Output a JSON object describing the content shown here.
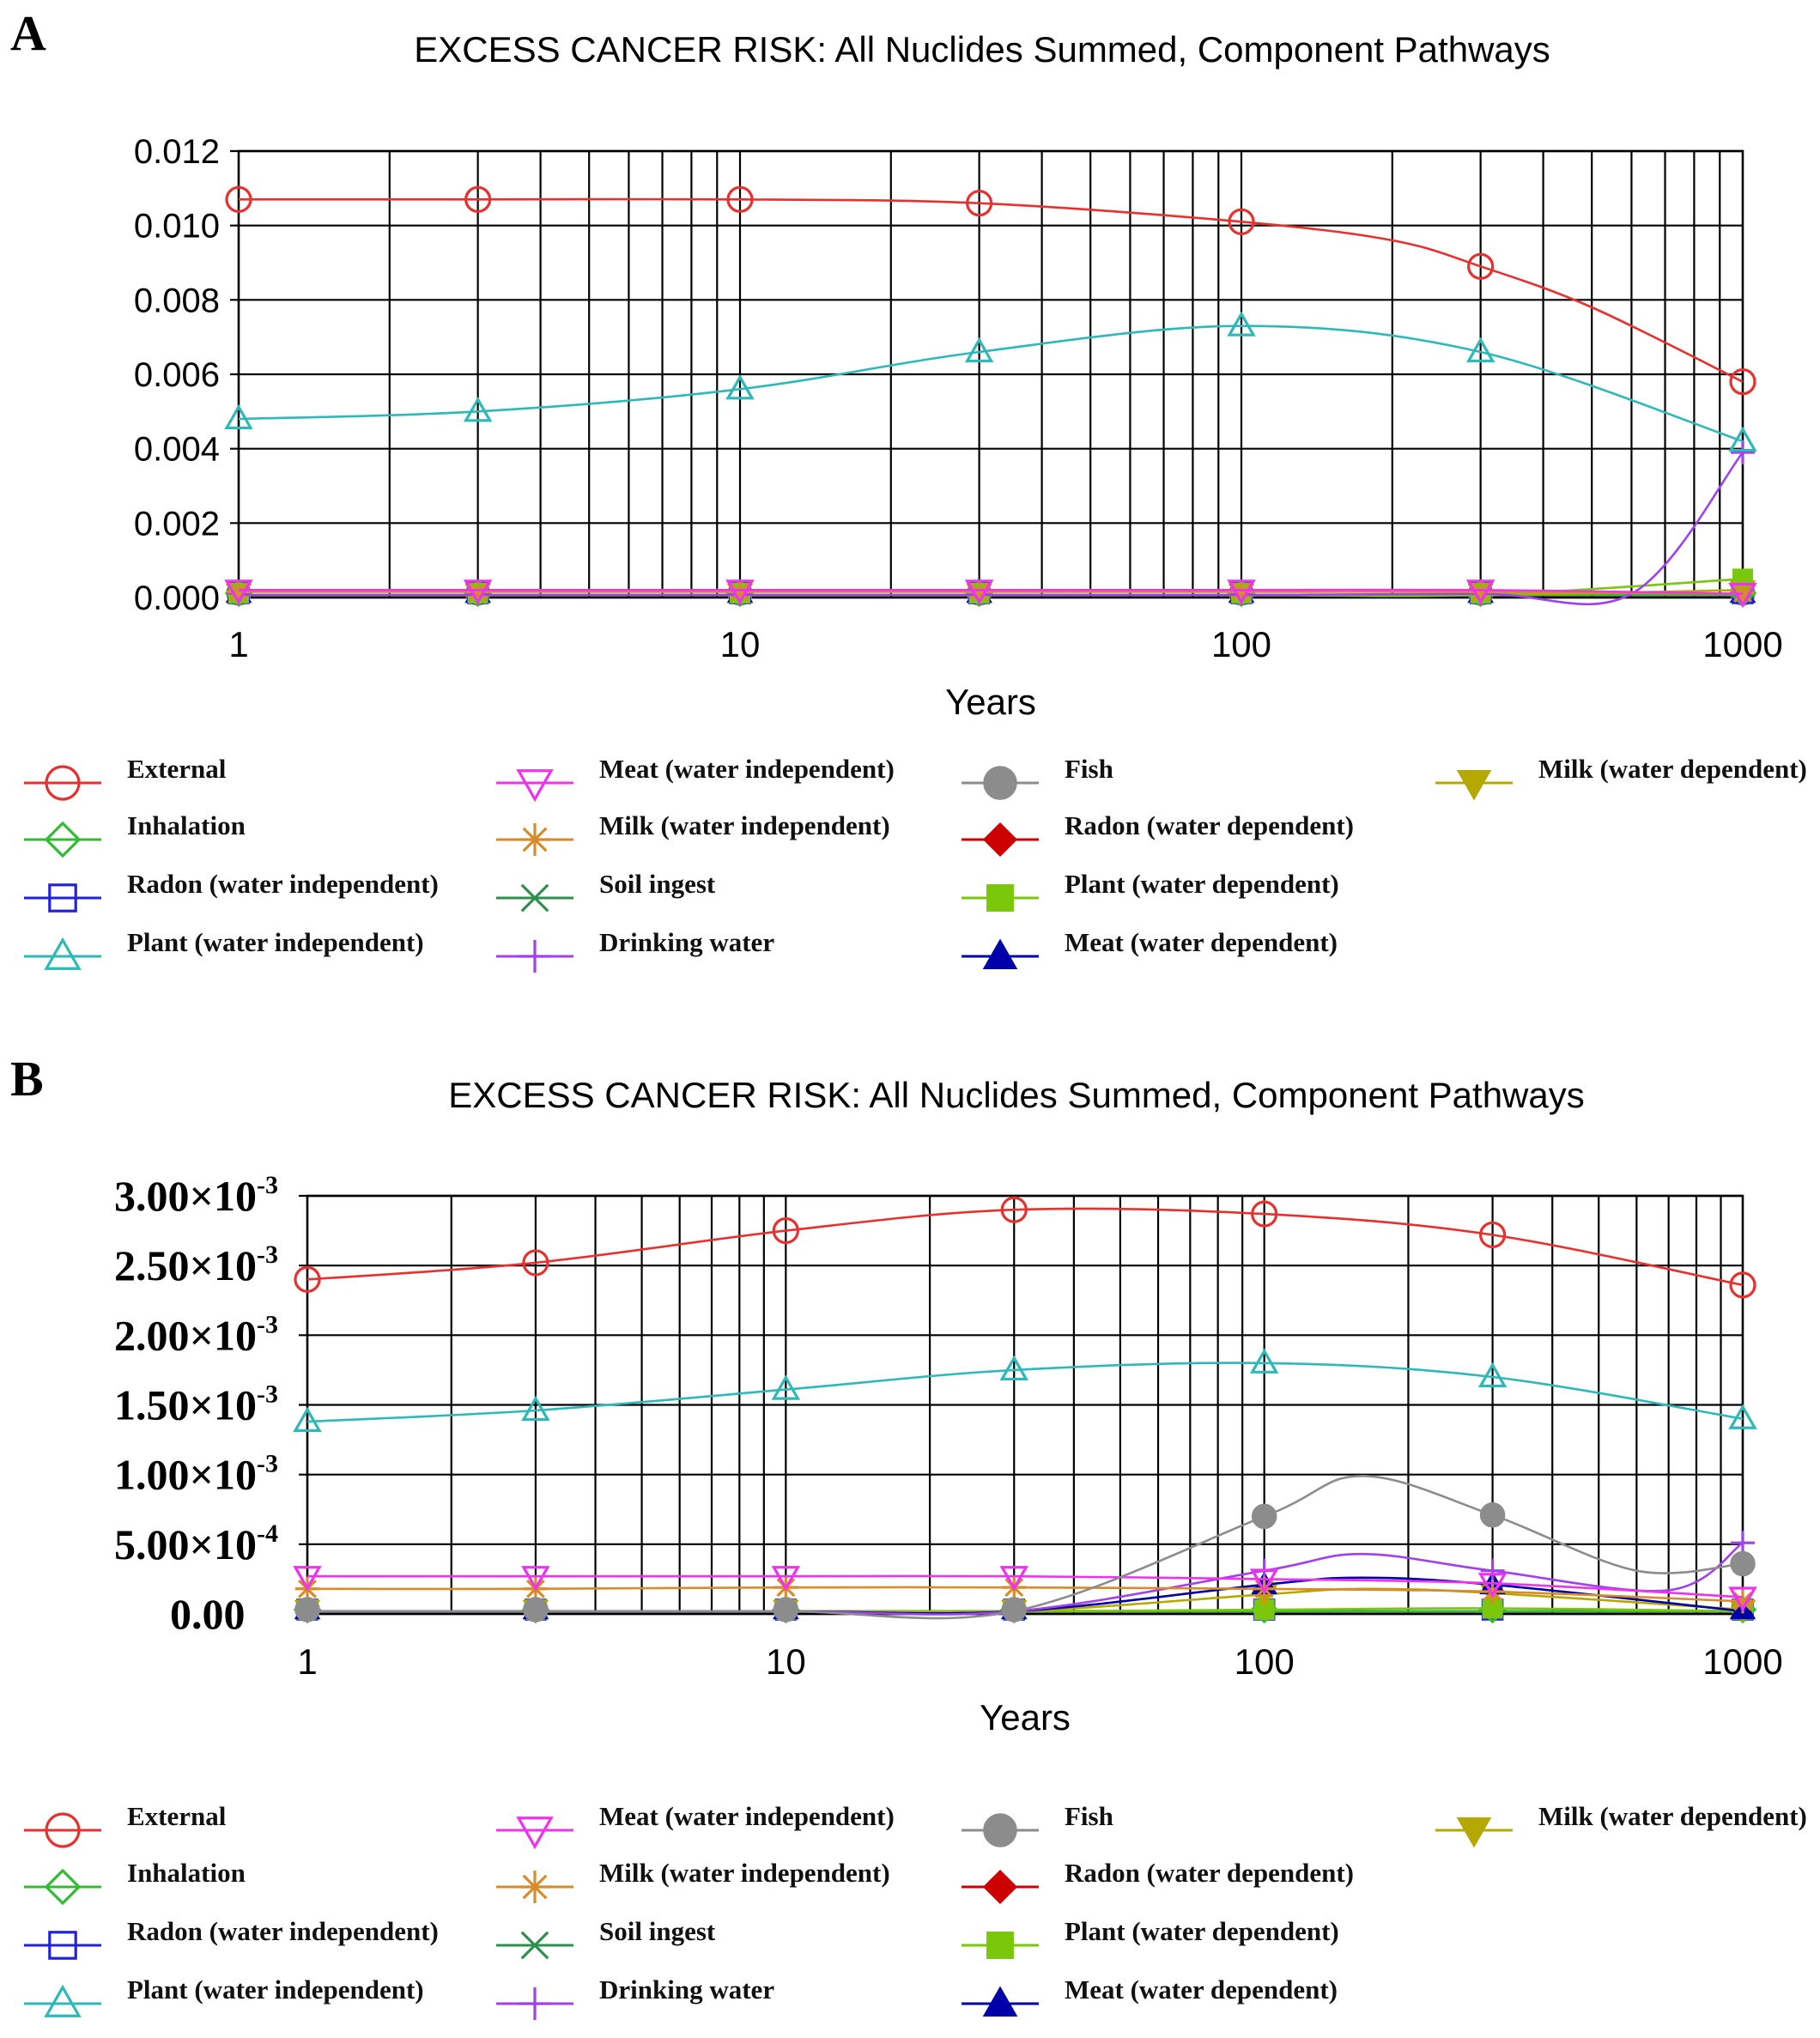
{
  "chart_data": [
    {
      "panel": "A",
      "type": "line",
      "title": "EXCESS CANCER RISK: All Nuclides Summed, Component Pathways",
      "xlabel": "Years",
      "ylabel": "",
      "xscale": "log",
      "xlim": [
        1,
        1000
      ],
      "ylim": [
        0,
        0.012
      ],
      "x_ticks": [
        1,
        10,
        100,
        1000
      ],
      "x_tick_labels": [
        "1",
        "10",
        "100",
        "1000"
      ],
      "y_ticks": [
        0,
        0.002,
        0.004,
        0.006,
        0.008,
        0.01,
        0.012
      ],
      "y_tick_labels": [
        "0.000",
        "0.002",
        "0.004",
        "0.006",
        "0.008",
        "0.010",
        "0.012"
      ],
      "grid": true,
      "marker_x": [
        1,
        3,
        10,
        30,
        100,
        300,
        1000
      ],
      "series": [
        {
          "name": "External",
          "color": "#e8302e",
          "marker": "circle-open",
          "x": [
            1,
            3,
            10,
            30,
            100,
            200,
            300,
            500,
            1000
          ],
          "values": [
            0.0107,
            0.0107,
            0.0107,
            0.0106,
            0.0101,
            0.0096,
            0.0089,
            0.0078,
            0.0058
          ]
        },
        {
          "name": "Plant (water independent)",
          "color": "#2fb8b8",
          "marker": "triangle-open",
          "x": [
            1,
            3,
            10,
            30,
            100,
            300,
            1000
          ],
          "values": [
            0.0048,
            0.005,
            0.0056,
            0.0066,
            0.0073,
            0.0066,
            0.0042
          ]
        },
        {
          "name": "Meat (water independent)",
          "color": "#ee33ee",
          "marker": "triangle-down-open",
          "x": [
            1,
            3,
            10,
            30,
            100,
            300,
            1000
          ],
          "values": [
            0.0002,
            0.0002,
            0.0002,
            0.0002,
            0.0002,
            0.0002,
            0.0001
          ]
        },
        {
          "name": "Milk (water independent)",
          "color": "#d98a2b",
          "marker": "asterisk",
          "x": [
            1,
            3,
            10,
            30,
            100,
            300,
            1000
          ],
          "values": [
            0.00015,
            0.00015,
            0.00015,
            0.00015,
            0.00015,
            0.00015,
            0.0001
          ]
        },
        {
          "name": "Drinking water",
          "color": "#a040ee",
          "marker": "plus",
          "x": [
            1,
            3,
            10,
            30,
            100,
            300,
            600,
            1000
          ],
          "values": [
            0,
            0,
            0,
            0,
            0,
            0.0001,
            0.0001,
            0.0039
          ]
        },
        {
          "name": "Plant (water dependent)",
          "color": "#7ac70c",
          "marker": "square-filled",
          "x": [
            1,
            3,
            10,
            30,
            100,
            300,
            1000
          ],
          "values": [
            0,
            0,
            0,
            0,
            0,
            0,
            0.0005
          ]
        },
        {
          "name": "Milk (water dependent)",
          "color": "#b5a800",
          "marker": "triangle-down-filled",
          "x": [
            1,
            3,
            10,
            30,
            100,
            300,
            1000
          ],
          "values": [
            0,
            0,
            0,
            0,
            0,
            0,
            0.0002
          ]
        },
        {
          "name": "Inhalation",
          "color": "#33bb33",
          "marker": "diamond-open",
          "x": [
            1,
            3,
            10,
            30,
            100,
            300,
            1000
          ],
          "values": [
            0,
            0,
            0,
            0,
            0,
            0,
            0
          ]
        },
        {
          "name": "Radon (water independent)",
          "color": "#2222dd",
          "marker": "square-open",
          "x": [
            1,
            3,
            10,
            30,
            100,
            300,
            1000
          ],
          "values": [
            0,
            0,
            0,
            0,
            0,
            0,
            0
          ]
        },
        {
          "name": "Soil ingest",
          "color": "#2f8f4f",
          "marker": "x",
          "x": [
            1,
            3,
            10,
            30,
            100,
            300,
            1000
          ],
          "values": [
            0,
            0,
            0,
            0,
            0,
            0,
            0
          ]
        },
        {
          "name": "Fish",
          "color": "#8c8c8c",
          "marker": "circle-filled",
          "x": [
            1,
            3,
            10,
            30,
            100,
            300,
            1000
          ],
          "values": [
            0,
            0,
            0,
            0,
            0,
            0,
            0
          ]
        },
        {
          "name": "Radon (water dependent)",
          "color": "#cc0000",
          "marker": "diamond-filled",
          "x": [
            1,
            3,
            10,
            30,
            100,
            300,
            1000
          ],
          "values": [
            0,
            0,
            0,
            0,
            0,
            0,
            0
          ]
        },
        {
          "name": "Meat (water dependent)",
          "color": "#0000aa",
          "marker": "triangle-filled",
          "x": [
            1,
            3,
            10,
            30,
            100,
            300,
            1000
          ],
          "values": [
            0,
            0,
            0,
            0,
            0,
            0,
            0
          ]
        }
      ]
    },
    {
      "panel": "B",
      "type": "line",
      "title": "EXCESS CANCER RISK: All Nuclides Summed, Component Pathways",
      "xlabel": "Years",
      "ylabel": "",
      "xscale": "log",
      "xlim": [
        1,
        1000
      ],
      "ylim": [
        0,
        0.003
      ],
      "x_ticks": [
        1,
        10,
        100,
        1000
      ],
      "x_tick_labels": [
        "1",
        "10",
        "100",
        "1000"
      ],
      "y_ticks": [
        0,
        0.0005,
        0.001,
        0.0015,
        0.002,
        0.0025,
        0.003
      ],
      "y_tick_mantissas": [
        "0.00",
        "5.00×10",
        "1.00×10",
        "1.50×10",
        "2.00×10",
        "2.50×10",
        "3.00×10"
      ],
      "y_tick_exponents": [
        "",
        "-4",
        "-3",
        "-3",
        "-3",
        "-3",
        "-3"
      ],
      "grid": true,
      "marker_x": [
        1,
        3,
        10,
        30,
        100,
        300,
        1000
      ],
      "series": [
        {
          "name": "External",
          "color": "#e8302e",
          "marker": "circle-open",
          "x": [
            1,
            3,
            10,
            30,
            100,
            300,
            1000
          ],
          "values": [
            0.0024,
            0.00252,
            0.00275,
            0.0029,
            0.00287,
            0.00272,
            0.00236
          ]
        },
        {
          "name": "Plant (water independent)",
          "color": "#2fb8b8",
          "marker": "triangle-open",
          "x": [
            1,
            3,
            10,
            30,
            100,
            300,
            1000
          ],
          "values": [
            0.00138,
            0.00146,
            0.00161,
            0.00175,
            0.0018,
            0.0017,
            0.0014
          ]
        },
        {
          "name": "Fish",
          "color": "#8c8c8c",
          "marker": "circle-filled",
          "x": [
            1,
            3,
            10,
            30,
            100,
            160,
            300,
            600,
            1000
          ],
          "values": [
            0,
            0,
            0,
            2e-05,
            0.0007,
            0.00099,
            0.00071,
            0.00031,
            0.00036
          ]
        },
        {
          "name": "Meat (water independent)",
          "color": "#ee33ee",
          "marker": "triangle-down-open",
          "x": [
            1,
            3,
            10,
            30,
            100,
            300,
            1000
          ],
          "values": [
            0.00027,
            0.00027,
            0.00027,
            0.00027,
            0.00025,
            0.00022,
            0.00012
          ]
        },
        {
          "name": "Milk (water independent)",
          "color": "#d98a2b",
          "marker": "asterisk",
          "x": [
            1,
            3,
            10,
            30,
            100,
            300,
            1000
          ],
          "values": [
            0.00018,
            0.00018,
            0.00019,
            0.00019,
            0.00018,
            0.00016,
            9e-05
          ]
        },
        {
          "name": "Drinking water",
          "color": "#a040ee",
          "marker": "plus",
          "x": [
            1,
            3,
            10,
            30,
            100,
            160,
            300,
            700,
            1000
          ],
          "values": [
            0,
            0,
            0,
            1e-05,
            0.00031,
            0.00043,
            0.00031,
            0.00017,
            0.00051
          ]
        },
        {
          "name": "Meat (water dependent)",
          "color": "#0000aa",
          "marker": "triangle-filled",
          "x": [
            1,
            3,
            10,
            30,
            100,
            160,
            300,
            1000
          ],
          "values": [
            0,
            0,
            0,
            0,
            0.00021,
            0.00026,
            0.00021,
            2e-05
          ]
        },
        {
          "name": "Milk (water dependent)",
          "color": "#b5a800",
          "marker": "triangle-down-filled",
          "x": [
            1,
            3,
            10,
            30,
            100,
            160,
            300,
            1000
          ],
          "values": [
            0,
            0,
            0,
            0,
            0.00014,
            0.00018,
            0.00015,
            3e-05
          ]
        },
        {
          "name": "Plant (water dependent)",
          "color": "#7ac70c",
          "marker": "square-filled",
          "x": [
            1,
            3,
            10,
            30,
            100,
            300,
            1000
          ],
          "values": [
            1e-05,
            1e-05,
            1e-05,
            1e-05,
            3e-05,
            4e-05,
            2e-05
          ]
        },
        {
          "name": "Inhalation",
          "color": "#33bb33",
          "marker": "diamond-open",
          "x": [
            1,
            3,
            10,
            30,
            100,
            300,
            1000
          ],
          "values": [
            0,
            0,
            0,
            0,
            0,
            0,
            0
          ]
        },
        {
          "name": "Radon (water independent)",
          "color": "#2222dd",
          "marker": "square-open",
          "x": [
            1,
            3,
            10,
            30,
            100,
            300,
            1000
          ],
          "values": [
            0,
            0,
            0,
            0,
            0,
            0,
            0
          ]
        },
        {
          "name": "Soil ingest",
          "color": "#2f8f4f",
          "marker": "x",
          "x": [
            1,
            3,
            10,
            30,
            100,
            300,
            1000
          ],
          "values": [
            1e-05,
            1e-05,
            1e-05,
            1e-05,
            1e-05,
            1e-05,
            1e-05
          ]
        },
        {
          "name": "Radon (water dependent)",
          "color": "#cc0000",
          "marker": "diamond-filled",
          "x": [
            1,
            3,
            10,
            30,
            100,
            300,
            1000
          ],
          "values": [
            0,
            0,
            0,
            0,
            0,
            0,
            0
          ]
        }
      ]
    }
  ],
  "legend": {
    "columns": [
      [
        {
          "label": "External",
          "color": "#e8302e",
          "marker": "circle-open"
        },
        {
          "label": "Inhalation",
          "color": "#33bb33",
          "marker": "diamond-open"
        },
        {
          "label": "Radon (water independent)",
          "color": "#2222dd",
          "marker": "square-open"
        },
        {
          "label": "Plant (water independent)",
          "color": "#2fb8b8",
          "marker": "triangle-open"
        }
      ],
      [
        {
          "label": "Meat (water independent)",
          "color": "#ee33ee",
          "marker": "triangle-down-open"
        },
        {
          "label": "Milk (water independent)",
          "color": "#d98a2b",
          "marker": "asterisk"
        },
        {
          "label": "Soil ingest",
          "color": "#2f8f4f",
          "marker": "x"
        },
        {
          "label": "Drinking water",
          "color": "#a040ee",
          "marker": "plus"
        }
      ],
      [
        {
          "label": "Fish",
          "color": "#8c8c8c",
          "marker": "circle-filled"
        },
        {
          "label": "Radon (water dependent)",
          "color": "#cc0000",
          "marker": "diamond-filled"
        },
        {
          "label": "Plant (water dependent)",
          "color": "#7ac70c",
          "marker": "square-filled"
        },
        {
          "label": "Meat (water dependent)",
          "color": "#0000aa",
          "marker": "triangle-filled"
        }
      ],
      [
        {
          "label": "Milk (water dependent)",
          "color": "#b5a800",
          "marker": "triangle-down-filled"
        }
      ]
    ]
  }
}
